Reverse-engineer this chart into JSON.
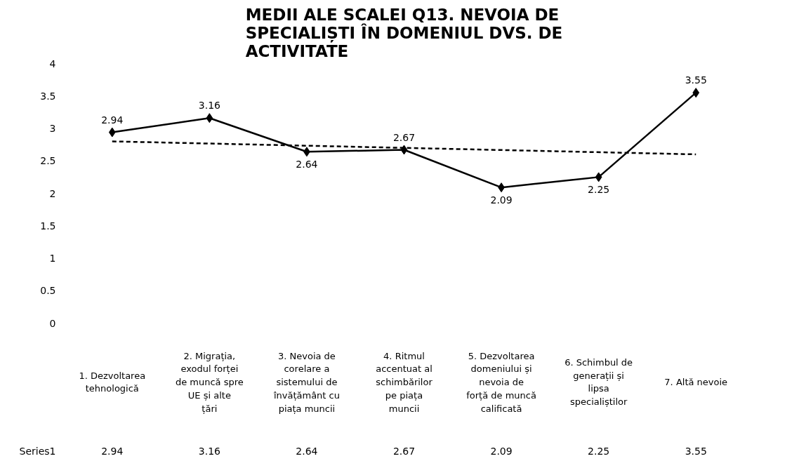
{
  "chart_data": {
    "type": "line",
    "title": "MEDII ALE SCALEI Q13. NEVOIA DE SPECIALIȘTI ÎN DOMENIUL DVS. DE ACTIVITATE",
    "categories": [
      "1. Dezvoltarea tehnologică",
      "2. Migrația, exodul forței de muncă spre UE și alte țări",
      "3. Nevoia de corelare a sistemului de învățământ cu piața muncii",
      "4. Ritmul accentuat al schimbărilor pe piața muncii",
      "5. Dezvoltarea domeniului și nevoia de forță de muncă calificată",
      "6. Schimbul de generații și lipsa specialiștilor",
      "7. Altă nevoie"
    ],
    "series": [
      {
        "name": "Series1",
        "color": "#000000",
        "values": [
          2.94,
          3.16,
          2.64,
          2.67,
          2.09,
          2.25,
          3.55
        ],
        "value_labels": [
          "2.94",
          "3.16",
          "2.64",
          "2.67",
          "2.09",
          "2.25",
          "3.55"
        ],
        "marker": "diamond",
        "line_style": "solid"
      },
      {
        "type": "line",
        "color": "#000000",
        "x": [
          "1. Dezvoltarea tehnologică",
          "7. Altă nevoie"
        ],
        "values": [
          2.8,
          2.6
        ],
        "marker": "none",
        "line_style": "dashed"
      }
    ],
    "ylim": [
      0,
      4
    ],
    "yticks": [
      0,
      0.5,
      1,
      1.5,
      2,
      2.5,
      3,
      3.5,
      4
    ],
    "grid": false
  }
}
